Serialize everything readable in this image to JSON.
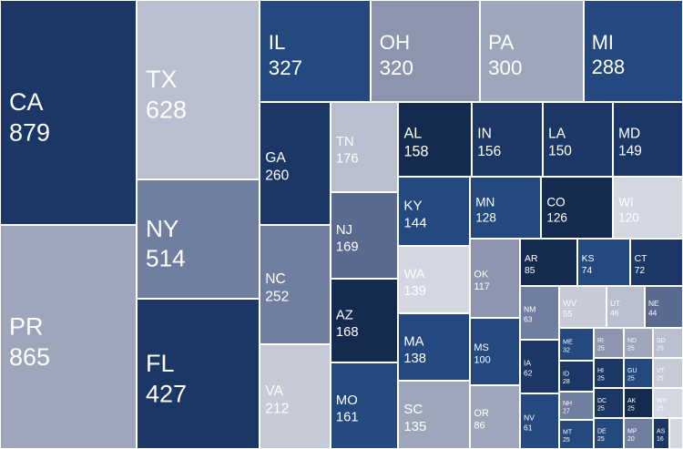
{
  "chart_data": {
    "type": "treemap",
    "title": "",
    "colors": {
      "very_dark": "#142a4f",
      "dark": "#1b3765",
      "blue": "#23497f",
      "slate": "#707e9f",
      "gray": "#9ea6bc",
      "light": "#b9bfcf",
      "very_light": "#d4d7e1",
      "text_light": "#ffffff"
    },
    "items": [
      {
        "label": "CA",
        "value": 879,
        "color": "#1b3765"
      },
      {
        "label": "PR",
        "value": 865,
        "color": "#9ea6bc"
      },
      {
        "label": "TX",
        "value": 628,
        "color": "#b9bfcf"
      },
      {
        "label": "NY",
        "value": 514,
        "color": "#707e9f"
      },
      {
        "label": "FL",
        "value": 427,
        "color": "#1b3765"
      },
      {
        "label": "IL",
        "value": 327,
        "color": "#23497f"
      },
      {
        "label": "OH",
        "value": 320,
        "color": "#8c95ad"
      },
      {
        "label": "PA",
        "value": 300,
        "color": "#9ea6bc"
      },
      {
        "label": "MI",
        "value": 288,
        "color": "#23497f"
      },
      {
        "label": "GA",
        "value": 260,
        "color": "#1b3765"
      },
      {
        "label": "NC",
        "value": 252,
        "color": "#707e9f"
      },
      {
        "label": "VA",
        "value": 212,
        "color": "#c7cbd7"
      },
      {
        "label": "TN",
        "value": 176,
        "color": "#b9bfcf"
      },
      {
        "label": "NJ",
        "value": 169,
        "color": "#5a6a8f"
      },
      {
        "label": "AZ",
        "value": 168,
        "color": "#142a4f"
      },
      {
        "label": "MO",
        "value": 161,
        "color": "#23497f"
      },
      {
        "label": "AL",
        "value": 158,
        "color": "#142a4f"
      },
      {
        "label": "IN",
        "value": 156,
        "color": "#1b3765"
      },
      {
        "label": "LA",
        "value": 150,
        "color": "#1b3765"
      },
      {
        "label": "MD",
        "value": 149,
        "color": "#1b3765"
      },
      {
        "label": "KY",
        "value": 144,
        "color": "#23497f"
      },
      {
        "label": "MN",
        "value": 128,
        "color": "#23497f"
      },
      {
        "label": "CO",
        "value": 126,
        "color": "#142a4f"
      },
      {
        "label": "WI",
        "value": 120,
        "color": "#d4d7e1"
      },
      {
        "label": "WA",
        "value": 139,
        "color": "#d4d7e1"
      },
      {
        "label": "MA",
        "value": 138,
        "color": "#23497f"
      },
      {
        "label": "SC",
        "value": 135,
        "color": "#9ea6bc"
      },
      {
        "label": "OK",
        "value": 117,
        "color": "#8c95ad"
      },
      {
        "label": "MS",
        "value": 100,
        "color": "#23497f"
      },
      {
        "label": "OR",
        "value": 86,
        "color": "#9ea6bc"
      },
      {
        "label": "AR",
        "value": 85,
        "color": "#142a4f"
      },
      {
        "label": "KS",
        "value": 74,
        "color": "#23497f"
      },
      {
        "label": "CT",
        "value": 72,
        "color": "#1b3765"
      },
      {
        "label": "NM",
        "value": 63,
        "color": "#707e9f"
      },
      {
        "label": "WV",
        "value": 55,
        "color": "#c7cbd7"
      },
      {
        "label": "UT",
        "value": 46,
        "color": "#b9bfcf"
      },
      {
        "label": "NE",
        "value": 44,
        "color": "#5a6a8f"
      },
      {
        "label": "IA",
        "value": 62,
        "color": "#1b3765"
      },
      {
        "label": "NV",
        "value": 61,
        "color": "#23497f"
      },
      {
        "label": "ME",
        "value": 32,
        "color": "#23497f"
      },
      {
        "label": "ID",
        "value": 28,
        "color": "#1b3765"
      },
      {
        "label": "NH",
        "value": 27,
        "color": "#707e9f"
      },
      {
        "label": "MT",
        "value": 25,
        "color": "#23497f"
      },
      {
        "label": "RI",
        "value": 25,
        "color": "#8c95ad"
      },
      {
        "label": "HI",
        "value": 25,
        "color": "#1b3765"
      },
      {
        "label": "DC",
        "value": 25,
        "color": "#1b3765"
      },
      {
        "label": "DE",
        "value": 25,
        "color": "#23497f"
      },
      {
        "label": "ND",
        "value": 25,
        "color": "#9ea6bc"
      },
      {
        "label": "GU",
        "value": 25,
        "color": "#23497f"
      },
      {
        "label": "AK",
        "value": 25,
        "color": "#142a4f"
      },
      {
        "label": "MP",
        "value": 20,
        "color": "#707e9f"
      },
      {
        "label": "SD",
        "value": 25,
        "color": "#b9bfcf"
      },
      {
        "label": "VT",
        "value": 25,
        "color": "#c7cbd7"
      },
      {
        "label": "WY",
        "value": 25,
        "color": "#d4d7e1"
      },
      {
        "label": "AS",
        "value": 16,
        "color": "#1b3765"
      },
      {
        "label": "",
        "value": 10,
        "color": "#d4d7e1"
      }
    ]
  }
}
